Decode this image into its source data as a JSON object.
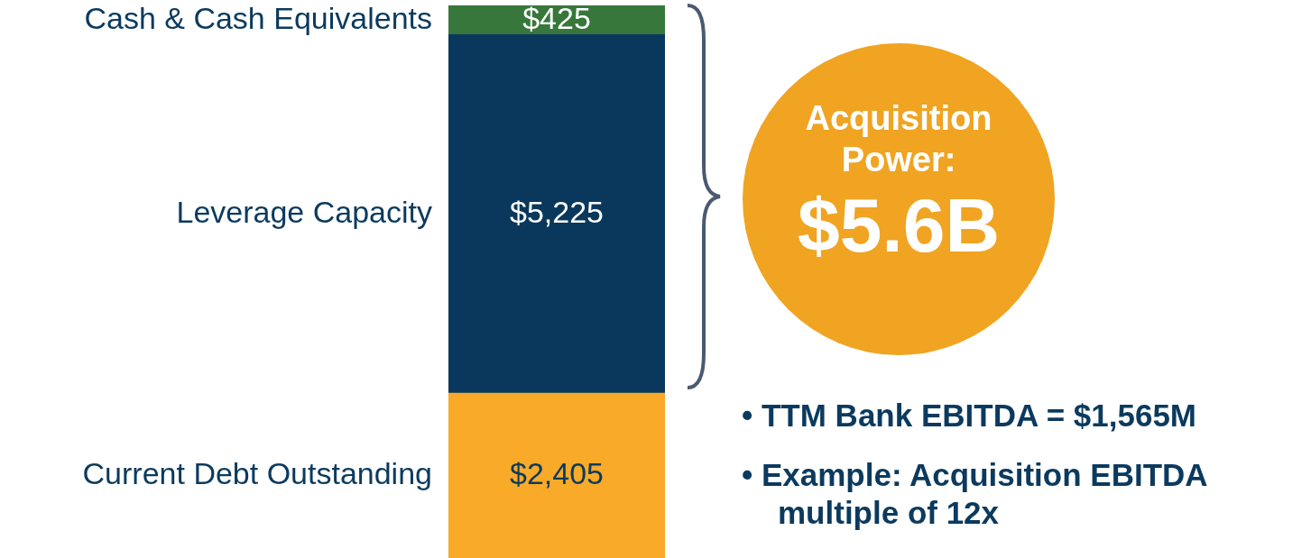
{
  "chart_data": {
    "type": "bar",
    "stacked": true,
    "categories": [
      null
    ],
    "series": [
      {
        "name": "Current Debt Outstanding",
        "color": "#f9aa28",
        "values": [
          2405
        ],
        "value_labels": [
          "$2,405"
        ]
      },
      {
        "name": "Leverage Capacity",
        "color": "#0a385c",
        "values": [
          5225
        ],
        "value_labels": [
          "$5,225"
        ]
      },
      {
        "name": "Cash & Cash Equivalents",
        "color": "#37773b",
        "values": [
          425
        ],
        "value_labels": [
          "$425"
        ]
      }
    ],
    "legend": false,
    "grid": false,
    "tick_labels": false,
    "annotations": [
      "Acquisition Power:",
      "$5.6B",
      "• TTM Bank EBITDA = $1,565M",
      "• Example: Acquisition EBITDA multiple of 12x"
    ]
  }
}
